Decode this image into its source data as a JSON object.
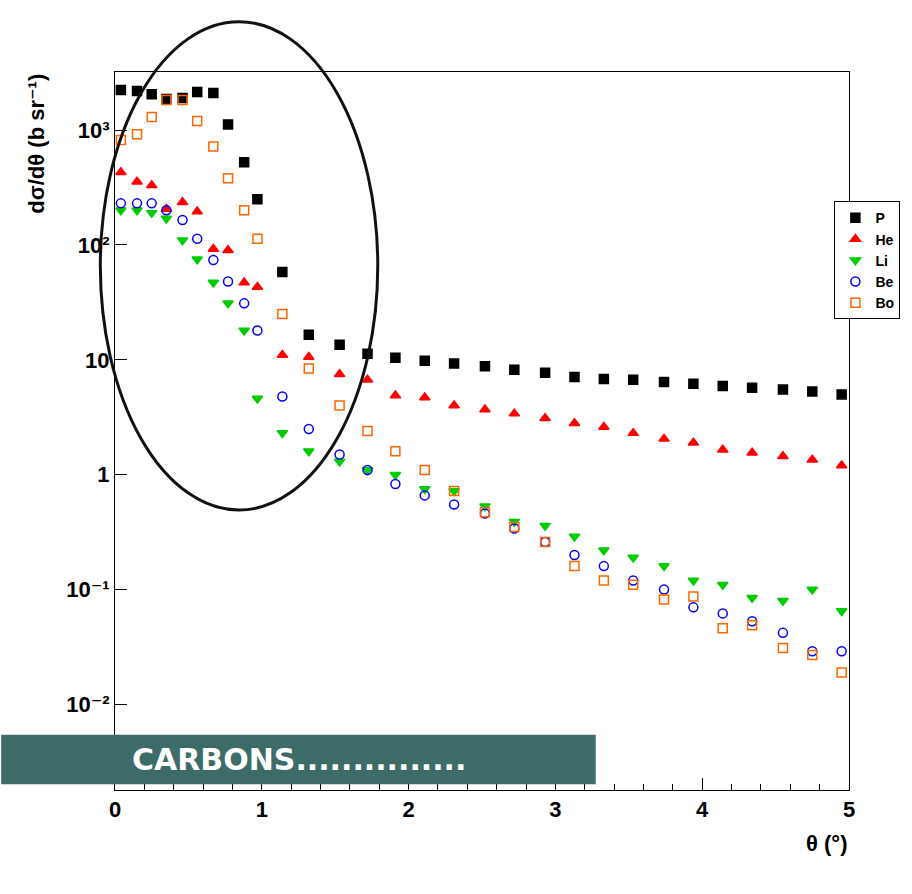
{
  "chart_data": {
    "type": "scatter",
    "x_title": "θ (°)",
    "y_title": "dσ/dθ (b sr⁻¹)",
    "annotations": [
      "CARBONS..............."
    ],
    "log": "y",
    "grid": false,
    "legend": "top right",
    "xlim": [
      0,
      5
    ],
    "xticks": [
      0,
      1,
      2,
      3,
      4,
      5
    ],
    "ylim": [
      0.0018,
      3200
    ],
    "yticks": [
      {
        "value": 0.01,
        "label": "10⁻²"
      },
      {
        "value": 0.1,
        "label": "10⁻¹"
      },
      1,
      10,
      {
        "value": 100,
        "label": "10²"
      },
      {
        "value": 1000,
        "label": "10³"
      }
    ],
    "x": [
      0.04,
      0.15,
      0.25,
      0.35,
      0.46,
      0.56,
      0.67,
      0.77,
      0.88,
      0.97,
      1.14,
      1.32,
      1.53,
      1.72,
      1.91,
      2.11,
      2.31,
      2.52,
      2.72,
      2.93,
      3.13,
      3.33,
      3.53,
      3.74,
      3.94,
      4.14,
      4.34,
      4.55,
      4.75,
      4.95
    ],
    "series": [
      {
        "name": "P",
        "color": "#000000",
        "marker": "square",
        "values": [
          2230,
          2190,
          2050,
          1860,
          1900,
          2140,
          2100,
          1120,
          525,
          250,
          58,
          16.5,
          13.5,
          11.3,
          10.4,
          9.8,
          9.3,
          8.8,
          8.2,
          7.7,
          7.1,
          6.8,
          6.7,
          6.4,
          6.2,
          5.9,
          5.7,
          5.5,
          5.3,
          5.0
        ]
      },
      {
        "name": "He",
        "color": "#ff0000",
        "marker": "triangle-up",
        "values": [
          430,
          355,
          330,
          205,
          235,
          195,
          92,
          90,
          47,
          43,
          11,
          10.6,
          7.5,
          6.7,
          4.9,
          4.7,
          4.0,
          3.7,
          3.4,
          3.1,
          2.8,
          2.6,
          2.3,
          2.05,
          1.9,
          1.65,
          1.55,
          1.45,
          1.35,
          1.2
        ]
      },
      {
        "name": "Li",
        "color": "#00cc00",
        "marker": "triangle-down",
        "values": [
          200,
          200,
          190,
          170,
          110,
          75,
          47,
          31,
          18,
          4.6,
          2.3,
          1.6,
          1.3,
          1.1,
          1.0,
          0.75,
          0.72,
          0.53,
          0.39,
          0.36,
          0.29,
          0.22,
          0.19,
          0.16,
          0.12,
          0.11,
          0.085,
          0.08,
          0.1,
          0.065
        ]
      },
      {
        "name": "Be",
        "color": "#0000ff",
        "marker": "circle-open",
        "values": [
          230,
          230,
          230,
          200,
          165,
          113,
          74,
          48,
          31,
          18,
          4.8,
          2.5,
          1.5,
          1.1,
          0.83,
          0.66,
          0.55,
          0.46,
          0.34,
          0.26,
          0.2,
          0.16,
          0.12,
          0.1,
          0.07,
          0.062,
          0.053,
          0.042,
          0.029,
          0.029
        ]
      },
      {
        "name": "Bo",
        "color": "#ff6600",
        "marker": "square-open",
        "values": [
          820,
          920,
          1300,
          1830,
          1830,
          1200,
          720,
          380,
          200,
          113,
          25,
          8.4,
          4.0,
          2.4,
          1.6,
          1.1,
          0.72,
          0.47,
          0.35,
          0.26,
          0.16,
          0.12,
          0.11,
          0.082,
          0.087,
          0.046,
          0.049,
          0.031,
          0.027,
          0.019
        ]
      }
    ]
  }
}
